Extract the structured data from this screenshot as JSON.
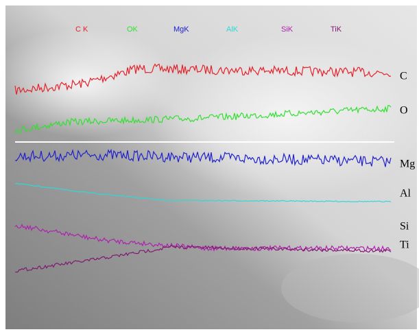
{
  "legend": {
    "items": [
      "C K",
      "OK",
      "MgK",
      "AlK",
      "SiK",
      "TiK"
    ]
  },
  "trace_labels": [
    "C",
    "O",
    "Mg",
    "Al",
    "Si",
    "Ti"
  ]
}
